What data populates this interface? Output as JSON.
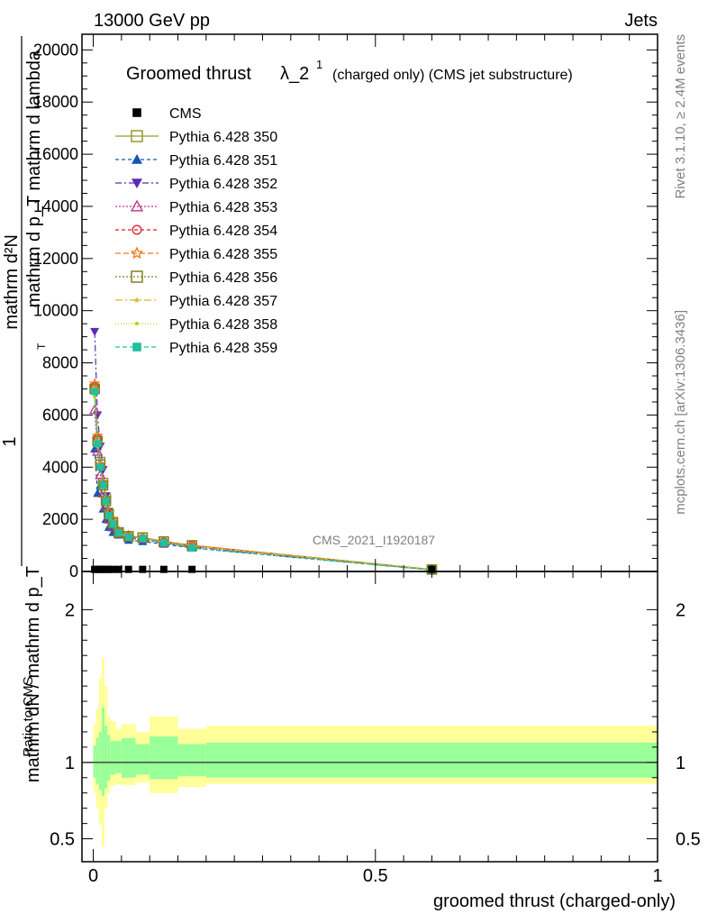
{
  "header": {
    "left": "13000 GeV pp",
    "right": "Jets"
  },
  "side": {
    "rivet": "Rivet 3.1.10, ≥ 2.4M events",
    "mcplots": "mcplots.cern.ch [arXiv:1306.3436]"
  },
  "watermark": "CMS_2021_I1920187",
  "chart_data": [
    {
      "type": "line",
      "title": "Groomed thrust λ_2¹ (charged only) (CMS jet substructure)",
      "title_main": "Groomed thrust",
      "title_lambda": "λ_2",
      "title_sup": "1",
      "title_small": "(charged only) (CMS jet substructure)",
      "ylabel_lines": [
        "mathrm d²N",
        "mathrm d p_T mathrm d lambda",
        "1",
        "mathrm dN / mathrm d p_T"
      ],
      "ylabel_sub": "T",
      "xlabel": "groomed thrust (charged-only)",
      "xlim": [
        -0.02,
        1.0
      ],
      "ylim": [
        0,
        20600
      ],
      "yticks": [
        0,
        2000,
        4000,
        6000,
        8000,
        10000,
        12000,
        14000,
        16000,
        18000,
        20000
      ],
      "ytick_labels": [
        "0",
        "2000",
        "4000",
        "6000",
        "8000",
        "10000",
        "12000",
        "14000",
        "16000",
        "18000",
        "20000"
      ],
      "legend_position": "top-left",
      "bins": [
        0.0,
        0.005,
        0.01,
        0.015,
        0.02,
        0.025,
        0.03,
        0.04,
        0.05,
        0.075,
        0.1,
        0.15,
        0.2,
        1.0
      ],
      "x": [
        0.0025,
        0.0075,
        0.0125,
        0.0175,
        0.0225,
        0.0275,
        0.035,
        0.045,
        0.0625,
        0.0875,
        0.125,
        0.175,
        0.6
      ],
      "cms_values": [
        80,
        80,
        80,
        80,
        80,
        80,
        80,
        80,
        80,
        80,
        80,
        80,
        80
      ],
      "series": [
        {
          "name": "CMS",
          "color": "#000000",
          "marker": "filled-square",
          "dash": "none"
        },
        {
          "name": "Pythia 6.428 350",
          "color": "#999933",
          "marker": "open-square",
          "dash": "solid",
          "values": [
            7000,
            5000,
            4200,
            3400,
            2800,
            2200,
            1900,
            1500,
            1350,
            1300,
            1150,
            1000,
            80
          ]
        },
        {
          "name": "Pythia 6.428 351",
          "color": "#1755b0",
          "marker": "filled-triangle-up",
          "dash": "4,3",
          "values": [
            4700,
            3000,
            3300,
            2400,
            2000,
            1700,
            1500,
            1400,
            1200,
            1150,
            1050,
            900,
            60
          ]
        },
        {
          "name": "Pythia 6.428 352",
          "color": "#5b2ab4",
          "marker": "filled-triangle-down",
          "dash": "7,3,2,3",
          "values": [
            9200,
            6000,
            4800,
            3900,
            2900,
            2300,
            1800,
            1500,
            1300,
            1200,
            1100,
            950,
            60
          ]
        },
        {
          "name": "Pythia 6.428 353",
          "color": "#c0308c",
          "marker": "open-triangle-up",
          "dash": "2,2",
          "values": [
            6200,
            4600,
            3700,
            3000,
            2500,
            2000,
            1700,
            1450,
            1300,
            1250,
            1100,
            950,
            60
          ]
        },
        {
          "name": "Pythia 6.428 354",
          "color": "#e0202a",
          "marker": "open-circle",
          "dash": "4,3",
          "values": [
            7100,
            5100,
            4000,
            3300,
            2700,
            2200,
            1850,
            1500,
            1350,
            1280,
            1150,
            1000,
            70
          ]
        },
        {
          "name": "Pythia 6.428 355",
          "color": "#f07820",
          "marker": "open-star",
          "dash": "6,3",
          "values": [
            7200,
            5200,
            4100,
            3400,
            2800,
            2300,
            1900,
            1550,
            1380,
            1300,
            1150,
            1000,
            70
          ]
        },
        {
          "name": "Pythia 6.428 356",
          "color": "#808020",
          "marker": "open-square",
          "dash": "2,2",
          "values": [
            7000,
            5000,
            4100,
            3300,
            2700,
            2200,
            1850,
            1500,
            1350,
            1300,
            1150,
            1000,
            70
          ]
        },
        {
          "name": "Pythia 6.428 357",
          "color": "#d6b820",
          "marker": "small-star",
          "dash": "8,3,2,3",
          "values": [
            6800,
            4900,
            4000,
            3250,
            2650,
            2150,
            1800,
            1480,
            1330,
            1280,
            1130,
            980,
            70
          ]
        },
        {
          "name": "Pythia 6.428 358",
          "color": "#b8d020",
          "marker": "small-dot",
          "dash": "1,2",
          "values": [
            6700,
            4800,
            3950,
            3200,
            2600,
            2100,
            1780,
            1460,
            1310,
            1250,
            1110,
            960,
            70
          ]
        },
        {
          "name": "Pythia 6.428 359",
          "color": "#20c0a0",
          "marker": "filled-square",
          "dash": "5,3",
          "values": [
            6900,
            4900,
            4000,
            3300,
            2700,
            2150,
            1820,
            1480,
            1320,
            1260,
            1100,
            900,
            60
          ]
        }
      ]
    },
    {
      "type": "area",
      "ylabel": "Ratio to CMS",
      "xlim": [
        -0.02,
        1.0
      ],
      "ylim": [
        0.35,
        2.25
      ],
      "yticks": [
        0.5,
        1,
        2
      ],
      "ytick_labels": [
        "0.5",
        "1",
        "2"
      ],
      "xticks": [
        0,
        0.5,
        1
      ],
      "xtick_labels": [
        "0",
        "0.5",
        "1"
      ],
      "reference": 1,
      "bins": [
        0.0,
        0.005,
        0.01,
        0.015,
        0.02,
        0.025,
        0.03,
        0.04,
        0.05,
        0.075,
        0.1,
        0.15,
        0.2,
        1.0
      ],
      "band_inner": [
        [
          0.9,
          1.11
        ],
        [
          0.86,
          1.16
        ],
        [
          0.82,
          1.2
        ],
        [
          0.78,
          1.36
        ],
        [
          0.83,
          1.24
        ],
        [
          0.88,
          1.18
        ],
        [
          0.92,
          1.14
        ],
        [
          0.93,
          1.14
        ],
        [
          0.9,
          1.16
        ],
        [
          0.92,
          1.12
        ],
        [
          0.89,
          1.17
        ],
        [
          0.91,
          1.12
        ],
        [
          0.9,
          1.13
        ]
      ],
      "band_outer": [
        [
          0.8,
          1.25
        ],
        [
          0.7,
          1.35
        ],
        [
          0.6,
          1.55
        ],
        [
          0.45,
          1.68
        ],
        [
          0.7,
          1.5
        ],
        [
          0.8,
          1.3
        ],
        [
          0.85,
          1.27
        ],
        [
          0.86,
          1.22
        ],
        [
          0.85,
          1.25
        ],
        [
          0.87,
          1.2
        ],
        [
          0.8,
          1.3
        ],
        [
          0.84,
          1.22
        ],
        [
          0.86,
          1.24
        ]
      ]
    }
  ]
}
